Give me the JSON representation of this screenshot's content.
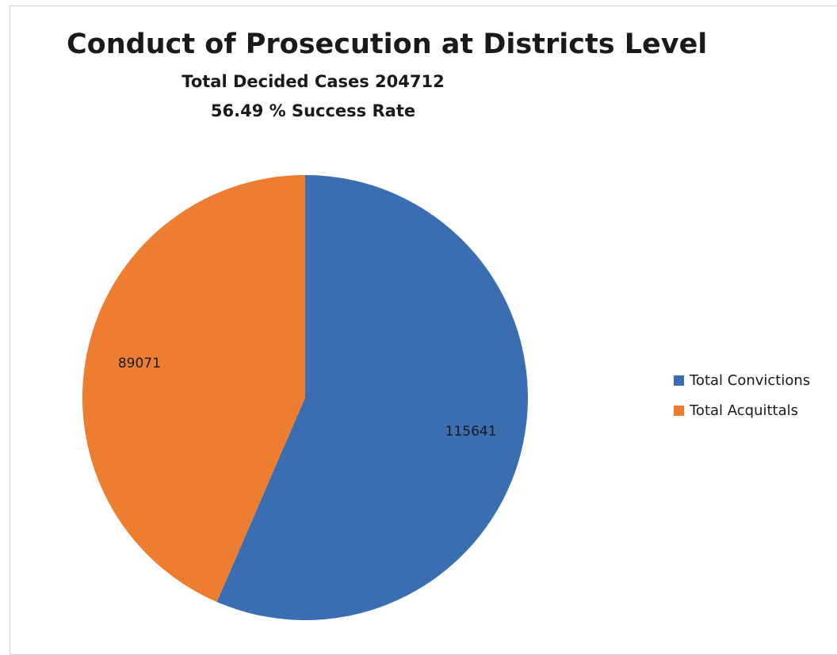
{
  "chart_data": {
    "type": "pie",
    "title": "Conduct of Prosecution at Districts Level",
    "subtitle_lines": [
      "Total Decided Cases 204712",
      "56.49 % Success Rate"
    ],
    "slices": [
      {
        "name": "Total Convictions",
        "value": 115641,
        "label": "115641",
        "color": "#3b6db3"
      },
      {
        "name": "Total Acquittals",
        "value": 89071,
        "label": "89071",
        "color": "#ed7d31"
      }
    ],
    "start_angle_deg": 0,
    "direction": "clockwise",
    "legend_position": "right"
  }
}
